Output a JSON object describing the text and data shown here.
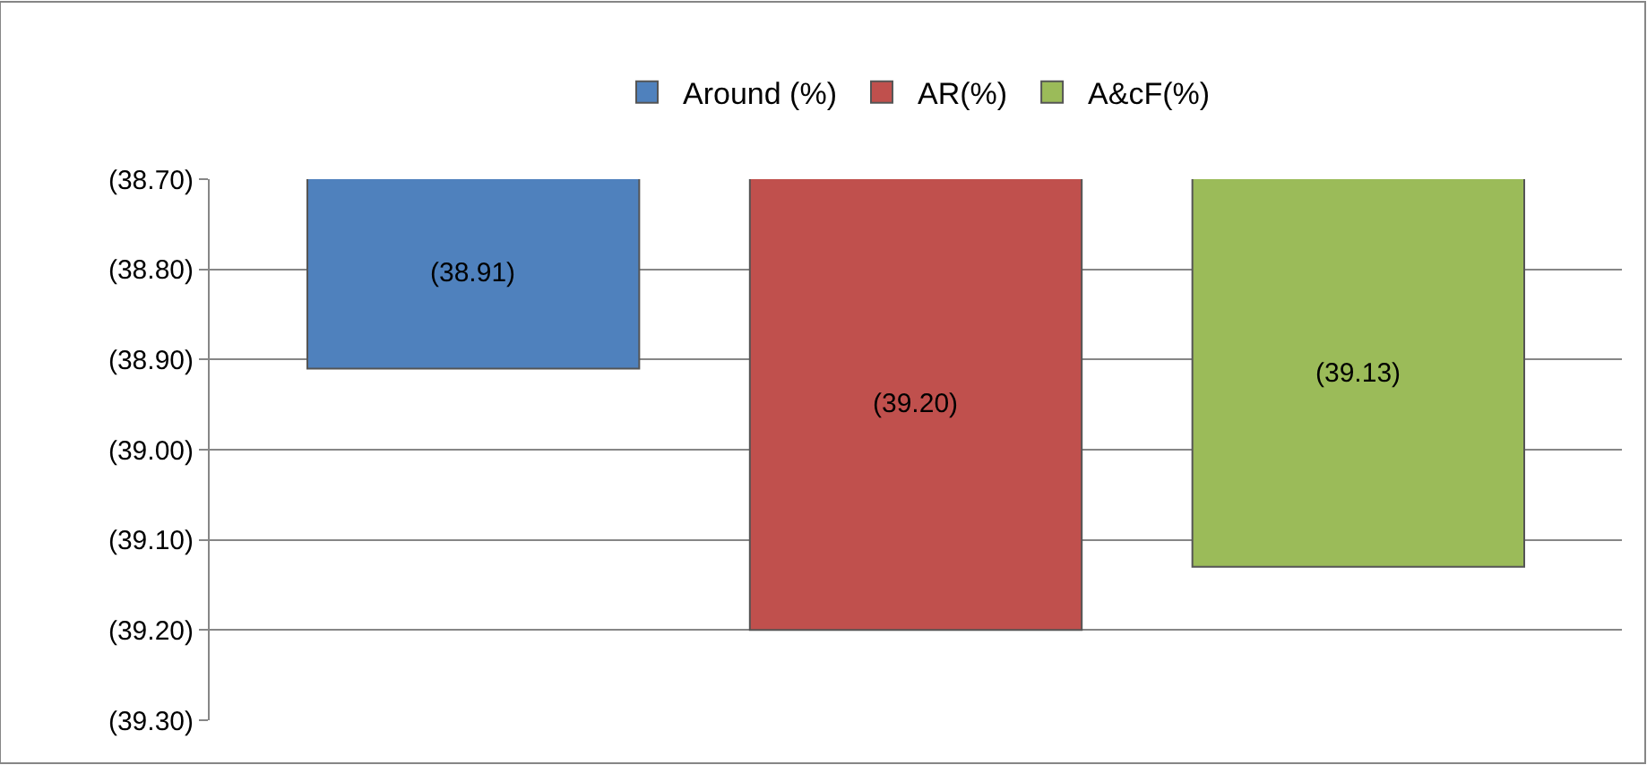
{
  "chart_data": {
    "type": "bar",
    "categories": [
      null
    ],
    "series": [
      {
        "name": "Around (%)",
        "color": "#4f81bd",
        "values": [
          -38.91
        ],
        "value_labels": [
          "(38.91)"
        ]
      },
      {
        "name": "AR(%)",
        "color": "#c0504d",
        "values": [
          -39.2
        ],
        "value_labels": [
          "(39.20)"
        ]
      },
      {
        "name": "A&cF(%)",
        "color": "#9bbb59",
        "values": [
          -39.13
        ],
        "value_labels": [
          "(39.13)"
        ]
      }
    ],
    "ylim": [
      -39.3,
      -38.7
    ],
    "yticks": [
      {
        "value": -38.7,
        "label": "(38.70)"
      },
      {
        "value": -38.8,
        "label": "(38.80)"
      },
      {
        "value": -38.9,
        "label": "(38.90)"
      },
      {
        "value": -39.0,
        "label": "(39.00)"
      },
      {
        "value": -39.1,
        "label": "(39.10)"
      },
      {
        "value": -39.2,
        "label": "(39.20)"
      },
      {
        "value": -39.3,
        "label": "(39.30)"
      }
    ],
    "grid": "y",
    "legend": "top"
  }
}
